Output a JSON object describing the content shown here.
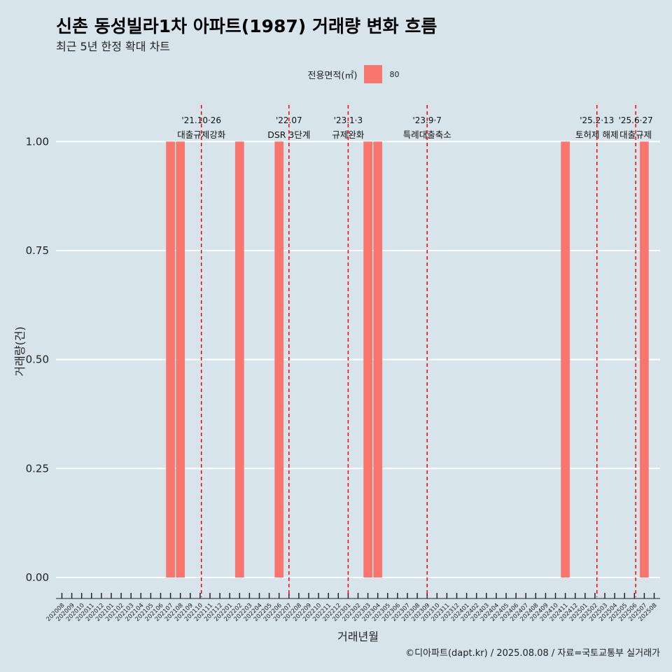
{
  "colors": {
    "background": "#d8e4eb",
    "bar": "#f8766d",
    "grid": "#ffffff",
    "event_line": "#ff0000"
  },
  "chart_data": {
    "type": "bar",
    "title": "신촌 동성빌라1차 아파트(1987) 거래량 변화 흐름",
    "subtitle": "최근 5년 한정 확대 차트",
    "xlabel": "거래년월",
    "ylabel": "거래량(건)",
    "ylim": [
      -0.045,
      1.1
    ],
    "yticks": [
      0,
      0.25,
      0.5,
      0.75,
      1.0
    ],
    "ytick_labels": [
      "0.00",
      "0.25",
      "0.50",
      "0.75",
      "1.00"
    ],
    "grid": true,
    "legend": {
      "title": "전용면적(㎡)",
      "placement": "top",
      "entries": [
        {
          "label": "80",
          "color": "#f8766d"
        }
      ]
    },
    "categories": [
      "202008",
      "202009",
      "202010",
      "202011",
      "202012",
      "202101",
      "202102",
      "202103",
      "202104",
      "202105",
      "202106",
      "202107",
      "202108",
      "202109",
      "202110",
      "202111",
      "202112",
      "202201",
      "202202",
      "202203",
      "202204",
      "202205",
      "202206",
      "202207",
      "202208",
      "202209",
      "202210",
      "202211",
      "202212",
      "202301",
      "202302",
      "202303",
      "202304",
      "202305",
      "202306",
      "202307",
      "202308",
      "202309",
      "202310",
      "202311",
      "202312",
      "202401",
      "202402",
      "202403",
      "202404",
      "202405",
      "202406",
      "202407",
      "202408",
      "202409",
      "202410",
      "202411",
      "202412",
      "202501",
      "202502",
      "202503",
      "202504",
      "202505",
      "202506",
      "202507",
      "202508"
    ],
    "series": [
      {
        "name": "80",
        "values": [
          0,
          0,
          0,
          0,
          0,
          0,
          0,
          0,
          0,
          0,
          0,
          1,
          1,
          0,
          0,
          0,
          0,
          0,
          1,
          0,
          0,
          0,
          1,
          0,
          0,
          0,
          0,
          0,
          0,
          0,
          0,
          1,
          1,
          0,
          0,
          0,
          0,
          0,
          0,
          0,
          0,
          0,
          0,
          0,
          0,
          0,
          0,
          0,
          0,
          0,
          0,
          1,
          0,
          0,
          0,
          0,
          0,
          0,
          0,
          1,
          0
        ]
      }
    ],
    "annotations": [
      {
        "date_line1": "'21.10·26",
        "date_line2": "대출규제강화",
        "x": "202110",
        "offset": 0.13
      },
      {
        "date_line1": "'22.07",
        "date_line2": "DSR 3단계",
        "x": "202207",
        "offset": 0.0
      },
      {
        "date_line1": "'23.1·3",
        "date_line2": "규제완화",
        "x": "202301",
        "offset": 0.0
      },
      {
        "date_line1": "'23.9·7",
        "date_line2": "특례대출축소",
        "x": "202309",
        "offset": 0.0
      },
      {
        "date_line1": "'25.2·13",
        "date_line2": "토허제 해제",
        "x": "202502",
        "offset": 0.2
      },
      {
        "date_line1": "'25.6·27",
        "date_line2": "대출규제",
        "x": "202506",
        "offset": 0.13
      }
    ]
  },
  "caption": "©디아파트(dapt.kr) / 2025.08.08 / 자료=국토교통부 실거래가"
}
